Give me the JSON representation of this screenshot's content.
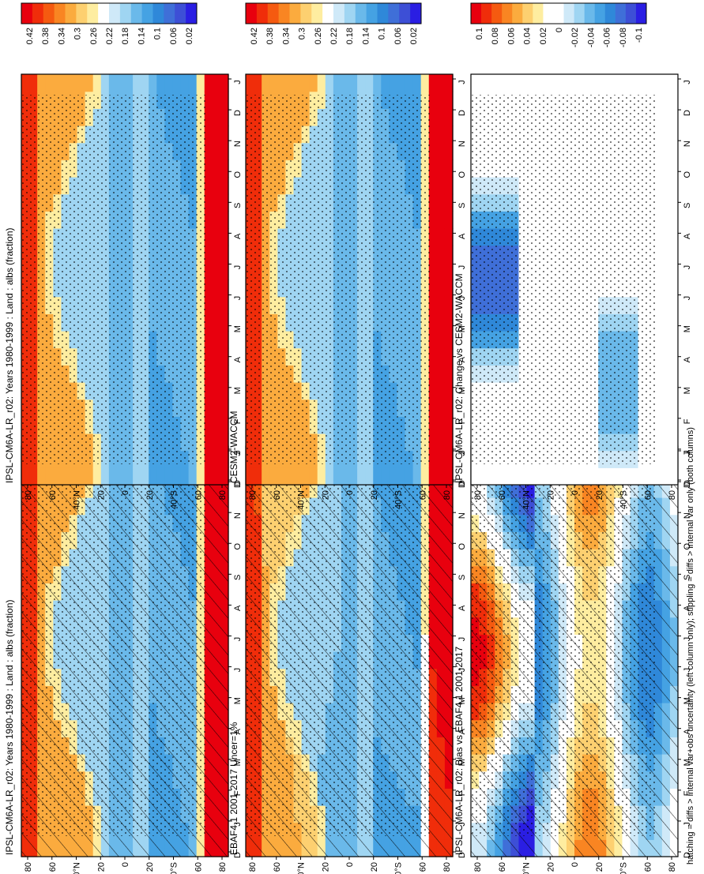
{
  "figure": {
    "footnote": "hatching = diffs > internal var+obs uncertainty (left column only); stippling = diffs > internal var only (both columns)"
  },
  "colors": {
    "abs_scale": [
      "#e8000e",
      "#f02d0a",
      "#f55a10",
      "#f98522",
      "#fbab3e",
      "#fdd070",
      "#feeda0",
      "#ffffff",
      "#cfe9f8",
      "#9fd5f2",
      "#6ab9ea",
      "#45a2e3",
      "#2f88d9",
      "#3f6fd8",
      "#3d4fd6",
      "#2a1ee3"
    ],
    "diff_scale": [
      "#e8000e",
      "#f02d0a",
      "#f55a10",
      "#f98522",
      "#fbab3e",
      "#fdd070",
      "#feeda0",
      "#ffffff",
      "#ffffff",
      "#cfe9f8",
      "#9fd5f2",
      "#6ab9ea",
      "#45a2e3",
      "#2f88d9",
      "#3f6fd8",
      "#3d4fd6",
      "#2a1ee3"
    ]
  },
  "chart_data": [
    {
      "id": "model-left",
      "type": "heatmap",
      "title": "IPSL-CM6A-LR_r02: Years 1980-1999 : Land : albs (fraction)",
      "x_ticks": [
        "D",
        "J",
        "F",
        "M",
        "A",
        "M",
        "J",
        "J",
        "A",
        "S",
        "O",
        "N",
        "D",
        "J"
      ],
      "y_ticks": [
        "80",
        "60",
        "40",
        "20",
        "0",
        "20",
        "40",
        "60",
        "80"
      ],
      "y_tick_suffix": {
        "2": "°N",
        "6": "°S"
      },
      "colorbar": [
        "0.42",
        "0.38",
        "0.34",
        "0.3",
        "0.26",
        "0.22",
        "0.18",
        "0.14",
        "0.1",
        "0.06",
        "0.02"
      ],
      "field": "model",
      "hatch": true,
      "stipple": true
    },
    {
      "id": "obs-left",
      "type": "heatmap",
      "title": "EBAF4.1 2001-2017 Uncer=1%",
      "x_ticks": [
        "D",
        "J",
        "F",
        "M",
        "A",
        "M",
        "J",
        "J",
        "A",
        "S",
        "O",
        "N",
        "D",
        "J"
      ],
      "y_ticks": [
        "80",
        "60",
        "40",
        "20",
        "0",
        "20",
        "40",
        "60",
        "80"
      ],
      "y_tick_suffix": {
        "2": "°N",
        "6": "°S"
      },
      "colorbar": [
        "0.42",
        "0.38",
        "0.34",
        "0.3",
        "0.26",
        "0.22",
        "0.18",
        "0.14",
        "0.1",
        "0.06",
        "0.02"
      ],
      "field": "obs",
      "hatch": true,
      "stipple": true
    },
    {
      "id": "bias-left",
      "type": "heatmap",
      "title": "IPSL-CM6A-LR_r02: Bias vs EBAF4.1 2001-2017",
      "x_ticks": [
        "D",
        "J",
        "F",
        "M",
        "A",
        "M",
        "J",
        "J",
        "A",
        "S",
        "O",
        "N",
        "D",
        "J"
      ],
      "y_ticks": [
        "80",
        "60",
        "40",
        "20",
        "0",
        "20",
        "40",
        "60",
        "80"
      ],
      "y_tick_suffix": {
        "2": "°N",
        "6": "°S"
      },
      "colorbar": [
        "0.1",
        "0.08",
        "0.06",
        "0.04",
        "0.02",
        "0",
        "-0.02",
        "-0.04",
        "-0.06",
        "-0.08",
        "-0.1"
      ],
      "field": "bias",
      "hatch": true,
      "stipple": true
    },
    {
      "id": "model-right",
      "type": "heatmap",
      "title": "IPSL-CM6A-LR_r02: Years 1980-1999 : Land : albs (fraction)",
      "x_ticks": [
        "D",
        "J",
        "F",
        "M",
        "A",
        "M",
        "J",
        "J",
        "A",
        "S",
        "O",
        "N",
        "D",
        "J"
      ],
      "y_ticks": [
        "80",
        "60",
        "40",
        "20",
        "0",
        "20",
        "40",
        "60",
        "80"
      ],
      "y_tick_suffix": {
        "2": "°N",
        "6": "°S"
      },
      "colorbar": [
        "0.42",
        "0.38",
        "0.34",
        "0.3",
        "0.26",
        "0.22",
        "0.18",
        "0.14",
        "0.1",
        "0.06",
        "0.02"
      ],
      "field": "model",
      "hatch": false,
      "stipple": true
    },
    {
      "id": "cesm-right",
      "type": "heatmap",
      "title": "CESM2-WACCM",
      "x_ticks": [
        "D",
        "J",
        "F",
        "M",
        "A",
        "M",
        "J",
        "J",
        "A",
        "S",
        "O",
        "N",
        "D",
        "J"
      ],
      "y_ticks": [
        "80",
        "60",
        "40",
        "20",
        "0",
        "20",
        "40",
        "60",
        "80"
      ],
      "y_tick_suffix": {
        "2": "°N",
        "6": "°S"
      },
      "colorbar": [
        "0.42",
        "0.38",
        "0.34",
        "0.3",
        "0.26",
        "0.22",
        "0.18",
        "0.14",
        "0.1",
        "0.06",
        "0.02"
      ],
      "field": "model",
      "hatch": false,
      "stipple": true
    },
    {
      "id": "change-right",
      "type": "heatmap",
      "title": "IPSL-CM6A-LR_r02: Change vs CESM2-WACCM",
      "x_ticks": [
        "D",
        "J",
        "F",
        "M",
        "A",
        "M",
        "J",
        "J",
        "A",
        "S",
        "O",
        "N",
        "D",
        "J"
      ],
      "y_ticks": [
        "80",
        "60",
        "40",
        "20",
        "0",
        "20",
        "40",
        "60",
        "80"
      ],
      "y_tick_suffix": {
        "2": "°N",
        "6": "°S"
      },
      "colorbar": [
        "0.1",
        "0.08",
        "0.06",
        "0.04",
        "0.02",
        "0",
        "-0.02",
        "-0.04",
        "-0.06",
        "-0.08",
        "-0.1"
      ],
      "field": "change",
      "hatch": false,
      "stipple": true
    }
  ]
}
